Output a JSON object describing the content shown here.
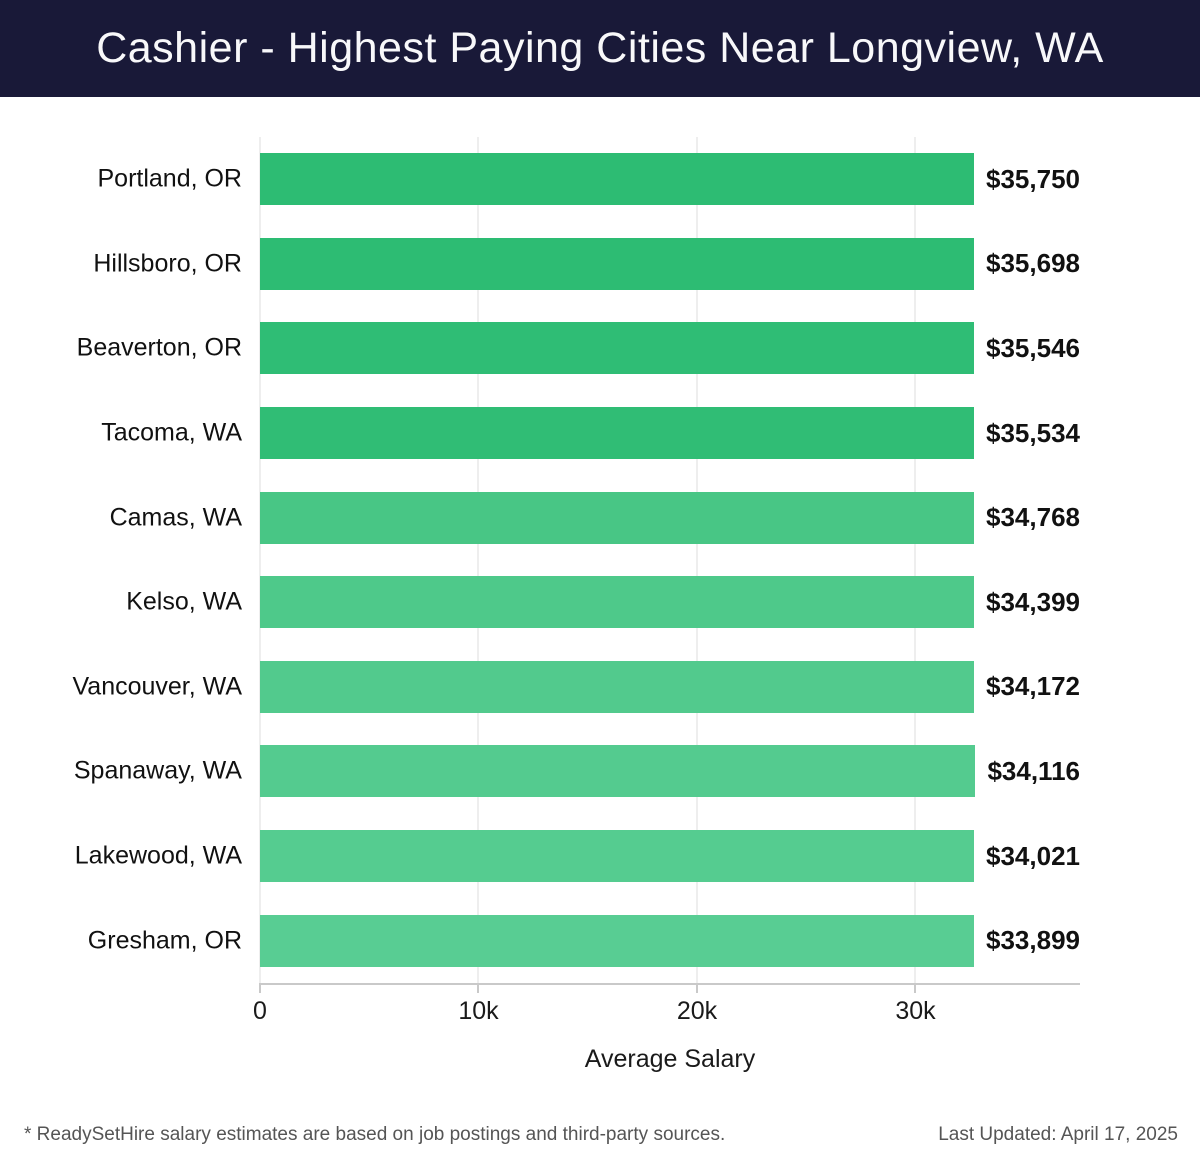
{
  "header": {
    "title": "Cashier - Highest Paying Cities Near Longview, WA",
    "bg_color": "#191938",
    "text_color": "#f8f8fa"
  },
  "chart_data": {
    "type": "bar",
    "orientation": "horizontal",
    "title": "Cashier - Highest Paying Cities Near Longview, WA",
    "categories": [
      "Portland, OR",
      "Hillsboro, OR",
      "Beaverton, OR",
      "Tacoma, WA",
      "Camas, WA",
      "Kelso, WA",
      "Vancouver, WA",
      "Spanaway, WA",
      "Lakewood, WA",
      "Gresham, OR"
    ],
    "values": [
      35750,
      35698,
      35546,
      35534,
      34768,
      34399,
      34172,
      34116,
      34021,
      33899
    ],
    "value_labels": [
      "$35,750",
      "$35,698",
      "$35,546",
      "$35,534",
      "$34,768",
      "$34,399",
      "$34,172",
      "$34,116",
      "$34,021",
      "$33,899"
    ],
    "bar_colors": [
      "#2dbc73",
      "#2dbc73",
      "#2fbd75",
      "#30bd75",
      "#48c685",
      "#4ec98a",
      "#52ca8d",
      "#54cb8f",
      "#55cc90",
      "#58cd93"
    ],
    "xlabel": "Average Salary",
    "xlim": [
      0,
      37530
    ],
    "xticks": [
      {
        "value": 0,
        "label": "0"
      },
      {
        "value": 10000,
        "label": "10k"
      },
      {
        "value": 20000,
        "label": "20k"
      },
      {
        "value": 30000,
        "label": "30k"
      }
    ],
    "grid": "vertical",
    "legend": "none",
    "gridline_color": "#dedede",
    "axis_color": "#c9c9c9"
  },
  "footer": {
    "disclaimer": "* ReadySetHire salary estimates are based on job postings and third-party sources.",
    "last_updated": "Last Updated: April 17, 2025"
  }
}
